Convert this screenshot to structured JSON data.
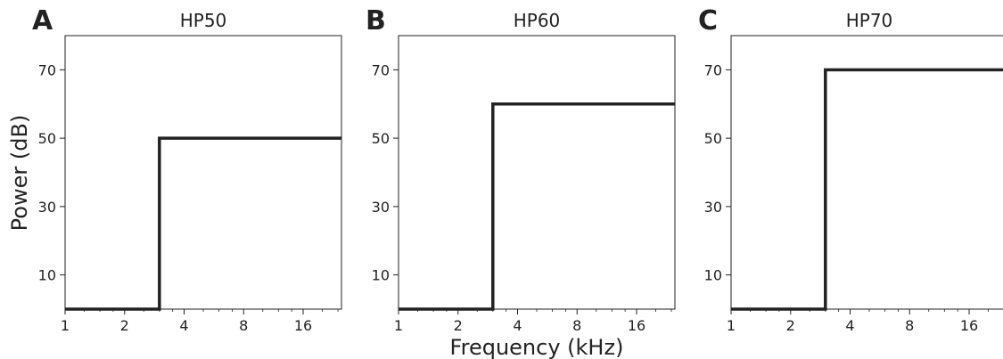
{
  "figure": {
    "ylabel": "Power (dB)",
    "xlabel": "Frequency (kHz)"
  },
  "chart_data": [
    {
      "type": "line",
      "panel_letter": "A",
      "title": "HP50",
      "xscale": "log2",
      "xlim": [
        1,
        25
      ],
      "ylim": [
        0,
        80
      ],
      "xticks": [
        1,
        2,
        4,
        8,
        16
      ],
      "xtick_labels": [
        "1",
        "2",
        "4",
        "8",
        "16"
      ],
      "yticks": [
        10,
        30,
        50,
        70
      ],
      "ytick_labels": [
        "10",
        "30",
        "50",
        "70"
      ],
      "grid": false,
      "series": [
        {
          "x": [
            1,
            3,
            3,
            25
          ],
          "y": [
            0,
            0,
            50,
            50
          ],
          "color": "#222222"
        }
      ]
    },
    {
      "type": "line",
      "panel_letter": "B",
      "title": "HP60",
      "xscale": "log2",
      "xlim": [
        1,
        25
      ],
      "ylim": [
        0,
        80
      ],
      "xticks": [
        1,
        2,
        4,
        8,
        16
      ],
      "xtick_labels": [
        "1",
        "2",
        "4",
        "8",
        "16"
      ],
      "yticks": [
        10,
        30,
        50,
        70
      ],
      "ytick_labels": [
        "10",
        "30",
        "50",
        "70"
      ],
      "grid": false,
      "series": [
        {
          "x": [
            1,
            3,
            3,
            25
          ],
          "y": [
            0,
            0,
            60,
            60
          ],
          "color": "#222222"
        }
      ]
    },
    {
      "type": "line",
      "panel_letter": "C",
      "title": "HP70",
      "xscale": "log2",
      "xlim": [
        1,
        25
      ],
      "ylim": [
        0,
        80
      ],
      "xticks": [
        1,
        2,
        4,
        8,
        16
      ],
      "xtick_labels": [
        "1",
        "2",
        "4",
        "8",
        "16"
      ],
      "yticks": [
        10,
        30,
        50,
        70
      ],
      "ytick_labels": [
        "10",
        "30",
        "50",
        "70"
      ],
      "grid": false,
      "series": [
        {
          "x": [
            1,
            3,
            3,
            25
          ],
          "y": [
            0,
            0,
            70,
            70
          ],
          "color": "#222222"
        }
      ]
    }
  ]
}
